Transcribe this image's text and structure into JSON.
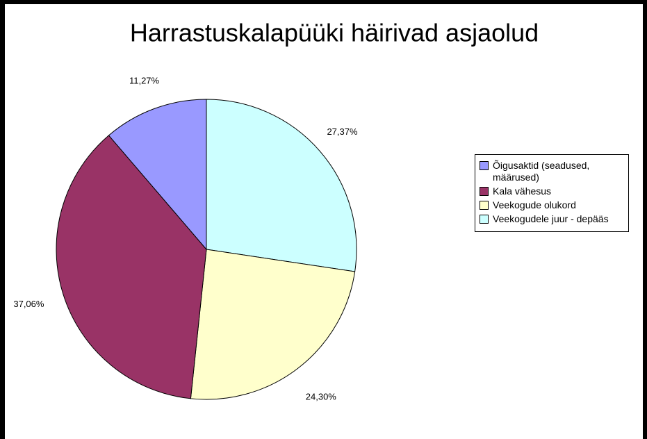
{
  "chart_data": {
    "type": "pie",
    "title": "Harrastuskalapüüki häirivad asjaolud",
    "categories": [
      "Õigusaktid (seadused, määrused)",
      "Kala vähesus",
      "Veekogude olukord",
      "Veekogudele juur - depääs"
    ],
    "values": [
      11.27,
      37.06,
      24.3,
      27.37
    ],
    "value_labels": [
      "11,27%",
      "37,06%",
      "24,30%",
      "27,37%"
    ],
    "colors": [
      "#9999ff",
      "#993366",
      "#ffffcc",
      "#ccffff"
    ],
    "legend": "right"
  }
}
